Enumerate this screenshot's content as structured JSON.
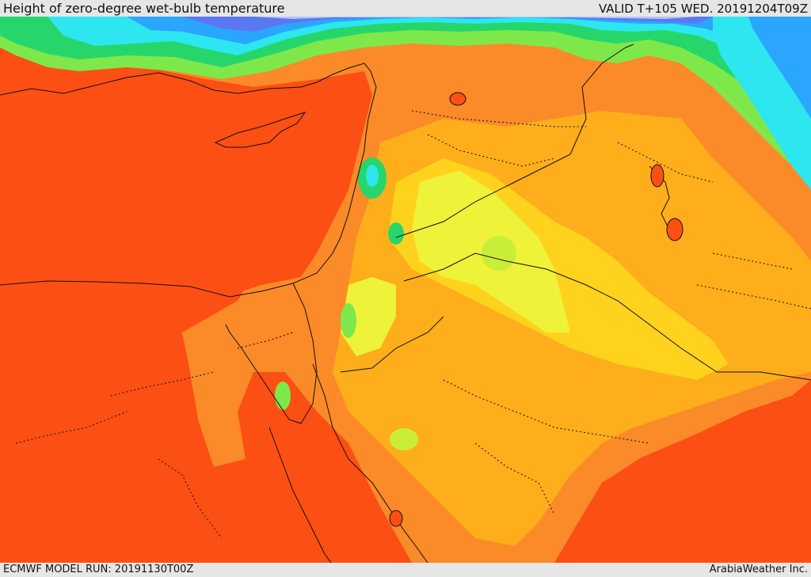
{
  "header": {
    "title": "Height of zero-degree wet-bulb temperature",
    "valid": "VALID T+105 WED. 20191204T09Z"
  },
  "footer": {
    "model_run": "ECMWF MODEL RUN: 20191130T00Z",
    "brand": "ArabiaWeather Inc."
  },
  "map": {
    "region": "Eastern Mediterranean and Middle East",
    "color_scale": [
      "#b9c2f6",
      "#5a78f2",
      "#2aa6ff",
      "#2ee6f0",
      "#27d66a",
      "#7ee84a",
      "#c8ee3a",
      "#eef238",
      "#ffd21e",
      "#fdae1a",
      "#fb8a28",
      "#fc4f14"
    ]
  }
}
